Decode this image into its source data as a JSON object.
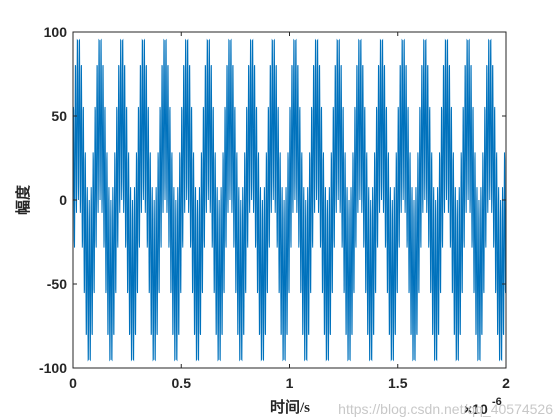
{
  "chart_data": {
    "type": "line",
    "xlabel": "时间/s",
    "ylabel": "幅度",
    "x_multiplier_label": "×10",
    "x_exponent_label": "-6",
    "xlim": [
      0,
      2
    ],
    "ylim": [
      -100,
      100
    ],
    "x_ticks": [
      0,
      0.5,
      1,
      1.5,
      2
    ],
    "x_tick_labels": [
      "0",
      "0.5",
      "1",
      "1.5",
      "2"
    ],
    "y_ticks": [
      -100,
      -50,
      0,
      50,
      100
    ],
    "y_tick_labels": [
      "-100",
      "-50",
      "0",
      "50",
      "100"
    ],
    "grid": false,
    "series": [
      {
        "color": "#0072BD",
        "x_unit_scale": 1e-06,
        "signal": "50*sin(2*pi*10e6*t) + 50*sin(2*pi*110e6*t)",
        "sample_interval": 1e-09,
        "samples": 2001
      }
    ]
  },
  "watermark": "https://blog.csdn.net/qq_40574526"
}
